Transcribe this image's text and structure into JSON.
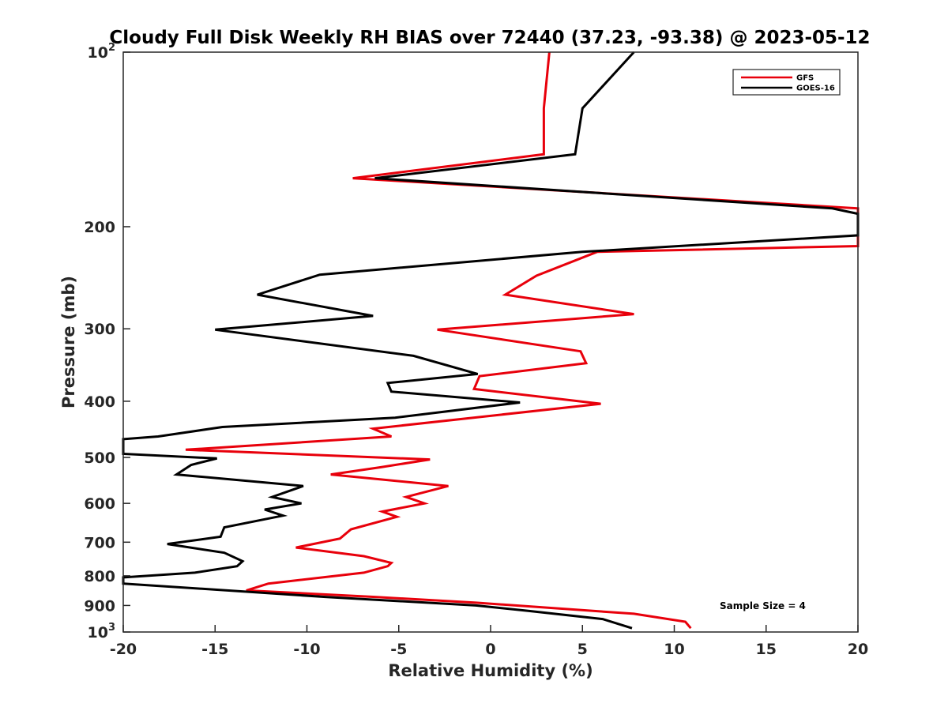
{
  "chart_data": {
    "type": "line",
    "title": "Cloudy Full Disk Weekly RH BIAS over 72440 (37.23, -93.38) @ 2023-05-12",
    "xlabel": "Relative Humidity (%)",
    "ylabel": "Pressure (mb)",
    "xlim": [
      -20,
      20
    ],
    "ylim": [
      100,
      1000
    ],
    "y_scale": "log",
    "y_reversed": true,
    "grid": false,
    "legend_position": "top-right",
    "x_ticks": [
      "-20",
      "-15",
      "-10",
      "-5",
      "0",
      "5",
      "10",
      "15",
      "20"
    ],
    "y_ticks": [
      {
        "value": 100,
        "base": "10",
        "exp": "2"
      },
      {
        "value": 200,
        "label": "200"
      },
      {
        "value": 300,
        "label": "300"
      },
      {
        "value": 400,
        "label": "400"
      },
      {
        "value": 500,
        "label": "500"
      },
      {
        "value": 600,
        "label": "600"
      },
      {
        "value": 700,
        "label": "700"
      },
      {
        "value": 800,
        "label": "800"
      },
      {
        "value": 900,
        "label": "900"
      },
      {
        "value": 1000,
        "base": "10",
        "exp": "3"
      }
    ],
    "series": [
      {
        "name": "GFS",
        "color": "#e8000b",
        "points": [
          [
            3.2,
            100
          ],
          [
            2.9,
            125
          ],
          [
            2.9,
            150
          ],
          [
            -7.5,
            165
          ],
          [
            20.0,
            186
          ],
          [
            20.0,
            216
          ],
          [
            5.8,
            221
          ],
          [
            2.5,
            243
          ],
          [
            0.8,
            262
          ],
          [
            7.8,
            283
          ],
          [
            -2.9,
            301
          ],
          [
            4.9,
            328
          ],
          [
            5.2,
            344
          ],
          [
            -0.6,
            362
          ],
          [
            -0.9,
            381
          ],
          [
            6.0,
            404
          ],
          [
            -6.4,
            446
          ],
          [
            -5.4,
            460
          ],
          [
            -16.6,
            485
          ],
          [
            -3.3,
            504
          ],
          [
            -6.0,
            520
          ],
          [
            -8.7,
            535
          ],
          [
            -2.3,
            560
          ],
          [
            -4.6,
            585
          ],
          [
            -3.6,
            600
          ],
          [
            -5.9,
            620
          ],
          [
            -5.1,
            633
          ],
          [
            -7.6,
            665
          ],
          [
            -8.2,
            690
          ],
          [
            -10.6,
            715
          ],
          [
            -6.9,
            740
          ],
          [
            -5.4,
            760
          ],
          [
            -5.6,
            770
          ],
          [
            -6.9,
            790
          ],
          [
            -12.1,
            825
          ],
          [
            -13.3,
            848
          ],
          [
            -6.3,
            870
          ],
          [
            -0.8,
            890
          ],
          [
            7.8,
            930
          ],
          [
            10.6,
            960
          ],
          [
            10.9,
            985
          ]
        ]
      },
      {
        "name": "GOES-16",
        "color": "#000000",
        "points": [
          [
            7.8,
            100
          ],
          [
            5.0,
            125
          ],
          [
            4.6,
            150
          ],
          [
            -6.3,
            165
          ],
          [
            18.6,
            186
          ],
          [
            20.0,
            190
          ],
          [
            20.0,
            207
          ],
          [
            5.0,
            221
          ],
          [
            -9.3,
            242
          ],
          [
            -12.7,
            262
          ],
          [
            -6.4,
            285
          ],
          [
            -15.0,
            301
          ],
          [
            -4.2,
            334
          ],
          [
            -0.7,
            359
          ],
          [
            -5.6,
            372
          ],
          [
            -5.4,
            385
          ],
          [
            1.6,
            402
          ],
          [
            -5.2,
            427
          ],
          [
            -14.6,
            443
          ],
          [
            -18.1,
            460
          ],
          [
            -20.0,
            465
          ],
          [
            -20.0,
            493
          ],
          [
            -14.9,
            502
          ],
          [
            -16.3,
            515
          ],
          [
            -17.1,
            535
          ],
          [
            -10.2,
            560
          ],
          [
            -11.9,
            585
          ],
          [
            -10.3,
            600
          ],
          [
            -12.3,
            615
          ],
          [
            -11.3,
            630
          ],
          [
            -14.5,
            660
          ],
          [
            -14.7,
            685
          ],
          [
            -17.6,
            705
          ],
          [
            -14.5,
            730
          ],
          [
            -13.5,
            755
          ],
          [
            -13.8,
            770
          ],
          [
            -16.1,
            790
          ],
          [
            -20.0,
            805
          ],
          [
            -20.0,
            825
          ],
          [
            -9.0,
            870
          ],
          [
            -0.8,
            900
          ],
          [
            2.1,
            920
          ],
          [
            6.1,
            950
          ],
          [
            7.7,
            985
          ]
        ]
      }
    ],
    "annotations": [
      "Sample Size = 4"
    ]
  }
}
